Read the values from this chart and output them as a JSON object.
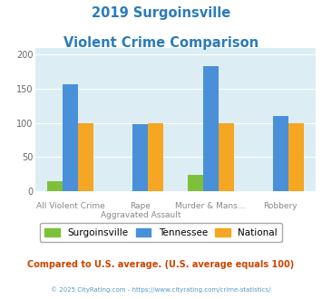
{
  "title_line1": "2019 Surgoinsville",
  "title_line2": "Violent Crime Comparison",
  "title_color": "#2b7bba",
  "cat_labels_top": [
    "",
    "Rape",
    "Murder & Mans...",
    ""
  ],
  "cat_labels_bot": [
    "All Violent Crime",
    "Aggravated Assault",
    "",
    "Robbery"
  ],
  "surgoinsville_values": [
    15,
    0,
    24,
    0
  ],
  "tennessee_values": [
    157,
    98,
    183,
    110
  ],
  "national_values": [
    100,
    100,
    100,
    100
  ],
  "surgoinsville_color": "#7dc13a",
  "tennessee_color": "#4a90d9",
  "national_color": "#f5a623",
  "legend_labels": [
    "Surgoinsville",
    "Tennessee",
    "National"
  ],
  "ylim": [
    0,
    210
  ],
  "yticks": [
    0,
    50,
    100,
    150,
    200
  ],
  "plot_bg_color": "#dceef4",
  "grid_color": "#c0d8e4",
  "footer_text": "Compared to U.S. average. (U.S. average equals 100)",
  "footer_color": "#cc4400",
  "credit_text": "© 2025 CityRating.com - https://www.cityrating.com/crime-statistics/",
  "credit_color": "#5599cc",
  "bar_width": 0.22
}
